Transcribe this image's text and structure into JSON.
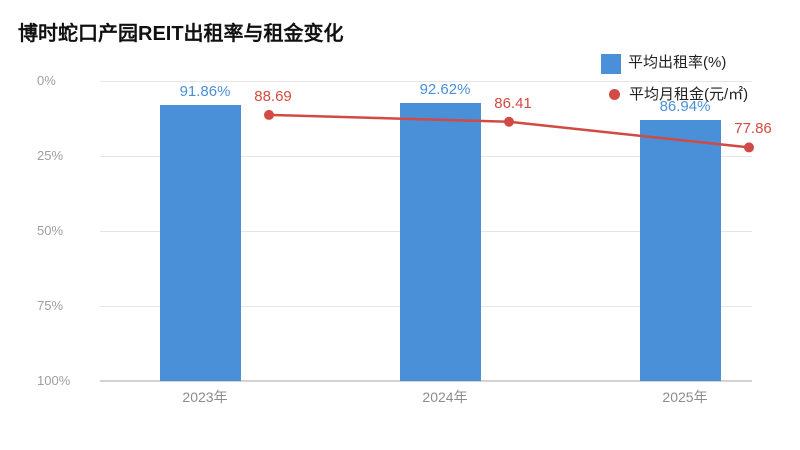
{
  "colors": {
    "bar": "#4a90d8",
    "line": "#d14a43",
    "grid": "#e5e5e5",
    "axis_line": "#d2d2d2",
    "y_tick_text": "#9e9e9e",
    "x_tick_text": "#8c8c8c",
    "title_text": "#111111",
    "legend_text": "#222222"
  },
  "chart_data": {
    "type": "combo",
    "title": "博时蛇口产园REIT出租率与租金变化",
    "categories": [
      "2023年",
      "2024年",
      "2025年"
    ],
    "series": [
      {
        "name": "平均出租率(%)",
        "type": "bar",
        "values": [
          91.86,
          92.62,
          86.94
        ],
        "labels": [
          "91.86%",
          "92.62%",
          "86.94%"
        ],
        "color": "#4a90d8"
      },
      {
        "name": "平均月租金(元/㎡)",
        "type": "line",
        "values": [
          88.69,
          86.41,
          77.86
        ],
        "labels": [
          "88.69",
          "86.41",
          "77.86"
        ],
        "color": "#d14a43"
      }
    ],
    "y_axis": {
      "ticks": [
        "0%",
        "25%",
        "50%",
        "75%",
        "100%"
      ],
      "range": [
        0,
        100
      ],
      "note": "tick labels shown inverted (0% at top, 100% at bottom)"
    },
    "legend_position": "top-right",
    "grid": true
  }
}
